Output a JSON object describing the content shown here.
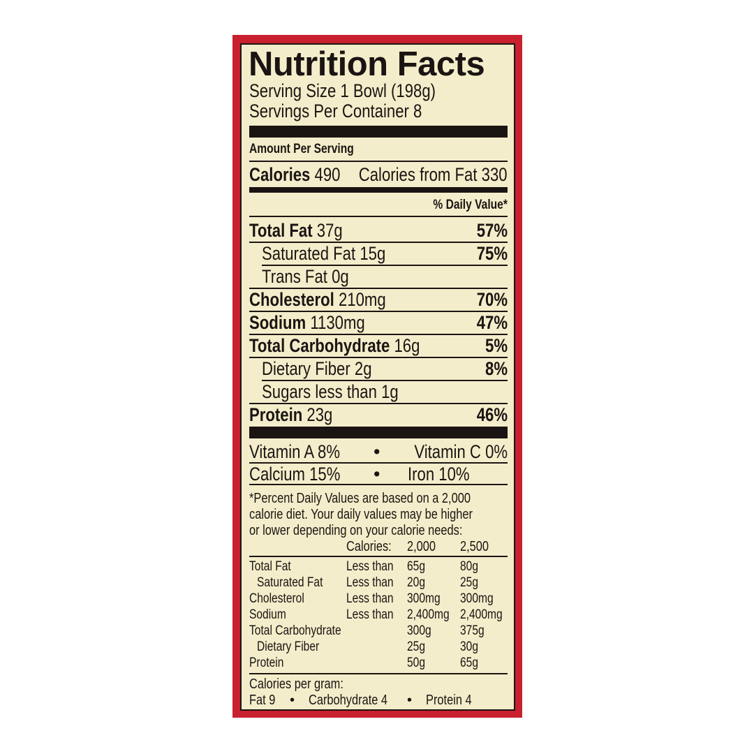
{
  "title": "Nutrition Facts",
  "serving_size": "Serving Size 1 Bowl (198g)",
  "servings_per_container": "Servings Per Container 8",
  "amount_per_serving": "Amount Per Serving",
  "calories": {
    "label": "Calories",
    "value": "490",
    "from_fat": "Calories from Fat 330"
  },
  "daily_value_header": "% Daily Value*",
  "nutrients": [
    {
      "label": "Total Fat",
      "amount": "37g",
      "dv": "57%"
    },
    {
      "label": "Saturated Fat",
      "amount": "15g",
      "dv": "75%"
    },
    {
      "label": "Trans Fat",
      "amount": "0g",
      "dv": ""
    },
    {
      "label": "Cholesterol",
      "amount": "210mg",
      "dv": "70%"
    },
    {
      "label": "Sodium",
      "amount": "1130mg",
      "dv": "47%"
    },
    {
      "label": "Total Carbohydrate",
      "amount": "16g",
      "dv": "5%"
    },
    {
      "label": "Dietary Fiber",
      "amount": "2g",
      "dv": "8%"
    },
    {
      "label": "Sugars",
      "amount": "less than 1g",
      "dv": ""
    },
    {
      "label": "Protein",
      "amount": "23g",
      "dv": "46%"
    }
  ],
  "vitamins": [
    "Vitamin A 8%",
    "Vitamin C 0%",
    "Calcium 15%",
    "Iron 10%"
  ],
  "bullet": "•",
  "footnote": [
    "*Percent Daily Values are based on a 2,000",
    "calorie diet. Your daily values may be higher",
    "or lower depending on your calorie needs:"
  ],
  "dv_table": {
    "header": [
      "Calories:",
      "2,000",
      "2,500"
    ],
    "rows": [
      [
        "Total Fat",
        "Less than",
        "65g",
        "80g"
      ],
      [
        "Saturated Fat",
        "Less than",
        "20g",
        "25g"
      ],
      [
        "Cholesterol",
        "Less than",
        "300mg",
        "300mg"
      ],
      [
        "Sodium",
        "Less than",
        "2,400mg",
        "2,400mg"
      ],
      [
        "Total Carbohydrate",
        "",
        "300g",
        "375g"
      ],
      [
        "Dietary Fiber",
        "",
        "25g",
        "30g"
      ],
      [
        "Protein",
        "",
        "50g",
        "65g"
      ]
    ]
  },
  "calories_per_gram": {
    "label": "Calories per gram:",
    "items": [
      "Fat 9",
      "Carbohydrate 4",
      "Protein 4"
    ]
  },
  "colors": {
    "border_red": "#c8202e",
    "background": "#f4edcb",
    "ink": "#1a1512"
  }
}
